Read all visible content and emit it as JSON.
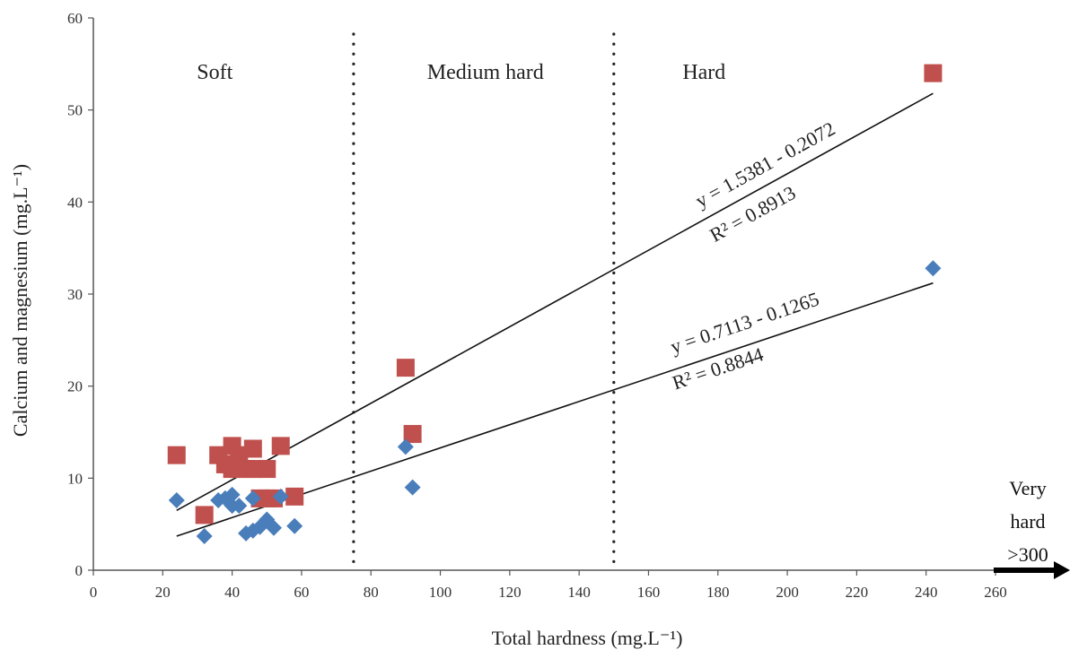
{
  "chart_data": {
    "type": "scatter",
    "title": "",
    "xlabel": "Total hardness (mg.L⁻¹)",
    "ylabel": "Calcium and magnesium (mg.L⁻¹)",
    "xlim": [
      0,
      260
    ],
    "ylim": [
      0,
      60
    ],
    "xticks": [
      0,
      20,
      40,
      60,
      80,
      100,
      120,
      140,
      160,
      180,
      200,
      220,
      240,
      260
    ],
    "yticks": [
      0,
      10,
      20,
      30,
      40,
      50,
      60
    ],
    "grid": false,
    "zones": [
      {
        "label": "Soft",
        "x": 35
      },
      {
        "label": "Medium hard",
        "x": 113
      },
      {
        "label": "Hard",
        "x": 176
      }
    ],
    "zone_dividers": [
      75,
      150
    ],
    "very_hard": {
      "lines": [
        "Very",
        "hard",
        ">300"
      ]
    },
    "series": [
      {
        "marker": "square",
        "color": "#c0504d",
        "x": [
          24,
          32,
          36,
          38,
          40,
          40,
          42,
          44,
          46,
          46,
          48,
          50,
          50,
          52,
          54,
          58,
          90,
          92,
          242
        ],
        "y": [
          12.5,
          6,
          12.5,
          11.5,
          13.5,
          11,
          12.5,
          11,
          13.2,
          11,
          7.8,
          11,
          7.8,
          7.8,
          13.5,
          8,
          22,
          14.8,
          54
        ],
        "trendline": {
          "x0": 24,
          "y0": 6.5,
          "x1": 242,
          "y1": 51.8
        },
        "equation": "y = 1.5381 - 0.2072",
        "r2": "R² = 0.8913"
      },
      {
        "marker": "diamond",
        "color": "#4a7ebb",
        "x": [
          24,
          32,
          36,
          38,
          40,
          40,
          42,
          44,
          46,
          46,
          48,
          50,
          52,
          54,
          58,
          90,
          92,
          242
        ],
        "y": [
          7.6,
          3.7,
          7.6,
          7.8,
          8.2,
          7,
          7,
          4,
          7.8,
          4.3,
          4.7,
          5.5,
          4.6,
          8,
          4.8,
          13.4,
          9,
          32.8
        ],
        "trendline": {
          "x0": 24,
          "y0": 3.7,
          "x1": 242,
          "y1": 31.2
        },
        "equation": "y = 0.7113 - 0.1265",
        "r2": "R² = 0.8844"
      }
    ]
  }
}
